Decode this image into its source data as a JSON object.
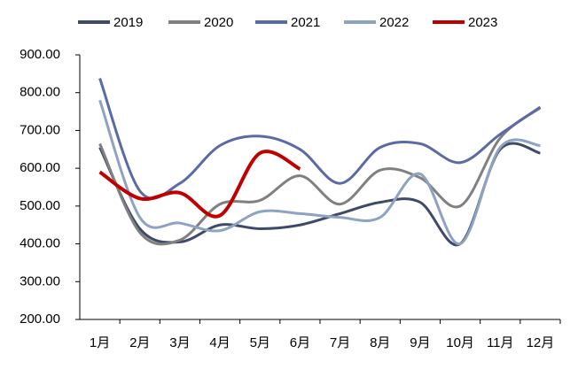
{
  "chart_data": {
    "type": "line",
    "categories": [
      "1月",
      "2月",
      "3月",
      "4月",
      "5月",
      "6月",
      "7月",
      "8月",
      "9月",
      "10月",
      "11月",
      "12月"
    ],
    "series": [
      {
        "name": "2019",
        "color": "#3f4a6b",
        "values": [
          655,
          440,
          405,
          450,
          440,
          450,
          480,
          510,
          510,
          400,
          650,
          640
        ]
      },
      {
        "name": "2020",
        "color": "#808080",
        "values": [
          665,
          430,
          410,
          505,
          515,
          580,
          505,
          595,
          575,
          500,
          680,
          760
        ]
      },
      {
        "name": "2021",
        "color": "#5a6aa5",
        "values": [
          838,
          540,
          560,
          660,
          685,
          650,
          560,
          655,
          665,
          615,
          690,
          762
        ]
      },
      {
        "name": "2022",
        "color": "#8ea2c1",
        "values": [
          780,
          470,
          455,
          435,
          485,
          480,
          470,
          470,
          585,
          400,
          655,
          660
        ]
      },
      {
        "name": "2023",
        "color": "#c00000",
        "values": [
          590,
          520,
          535,
          475,
          640,
          598,
          null,
          null,
          null,
          null,
          null,
          null
        ]
      }
    ],
    "ylim": [
      200,
      900
    ],
    "yticks": [
      {
        "value": 200,
        "label": "200.00"
      },
      {
        "value": 300,
        "label": "300.00"
      },
      {
        "value": 400,
        "label": "400.00"
      },
      {
        "value": 500,
        "label": "500.00"
      },
      {
        "value": 600,
        "label": "600.00"
      },
      {
        "value": 700,
        "label": "700.00"
      },
      {
        "value": 800,
        "label": "800.00"
      },
      {
        "value": 900,
        "label": "900.00"
      }
    ],
    "legend": "top"
  }
}
